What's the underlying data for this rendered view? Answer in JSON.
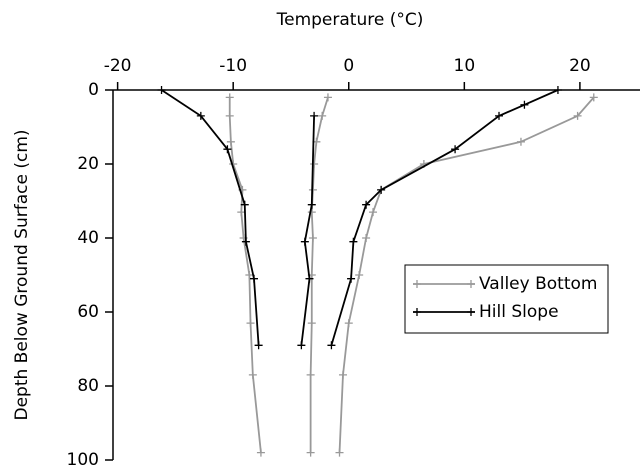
{
  "chart_data": {
    "type": "line",
    "x_label": "Temperature (°C)",
    "y_label": "Depth Below Ground Surface (cm)",
    "xlim": [
      -20.4,
      25.2
    ],
    "ylim": [
      0,
      100
    ],
    "xticks": [
      -20,
      -10,
      0,
      10,
      20
    ],
    "yticks": [
      0,
      20,
      40,
      60,
      80,
      100
    ],
    "y_inverted": true,
    "x_axis_position": "top",
    "legend": "right",
    "series": [
      {
        "name": "Valley Bottom",
        "color": "#999999",
        "x": [
          -10.3,
          -10.3,
          -10.2,
          -10,
          -9.2,
          -9.3,
          -9.1,
          -8.6,
          -8.5,
          -8.3,
          -7.6,
          null,
          -1.8,
          -2.3,
          -2.8,
          -3,
          -3.1,
          -3.2,
          -3.1,
          -3.2,
          -3.2,
          -3.3,
          -3.3,
          null,
          21.2,
          19.8,
          14.9,
          6.5,
          2.8,
          2.1,
          1.5,
          0.9,
          0,
          -0.5,
          -0.8
        ],
        "y": [
          2,
          7,
          14,
          20,
          27,
          33,
          40,
          50,
          63,
          77,
          98,
          null,
          2,
          7,
          14,
          20,
          27,
          33,
          40,
          50,
          63,
          77,
          98,
          null,
          2,
          7,
          14,
          20,
          27,
          33,
          40,
          50,
          63,
          77,
          98
        ]
      },
      {
        "name": "Hill Slope",
        "color": "#000000",
        "x": [
          -16.2,
          -12.8,
          -10.5,
          -9,
          -8.9,
          -8.2,
          -7.8,
          null,
          -3,
          -3.2,
          -3.8,
          -3.4,
          -4.1,
          null,
          18.1,
          15.2,
          13,
          9.2,
          2.8,
          1.5,
          0.4,
          0.2,
          -1.5
        ],
        "y": [
          0,
          7,
          16,
          31,
          41,
          51,
          69,
          null,
          7,
          31,
          41,
          51,
          69,
          null,
          0,
          4,
          7,
          16,
          27,
          31,
          41,
          51,
          69
        ]
      }
    ]
  }
}
